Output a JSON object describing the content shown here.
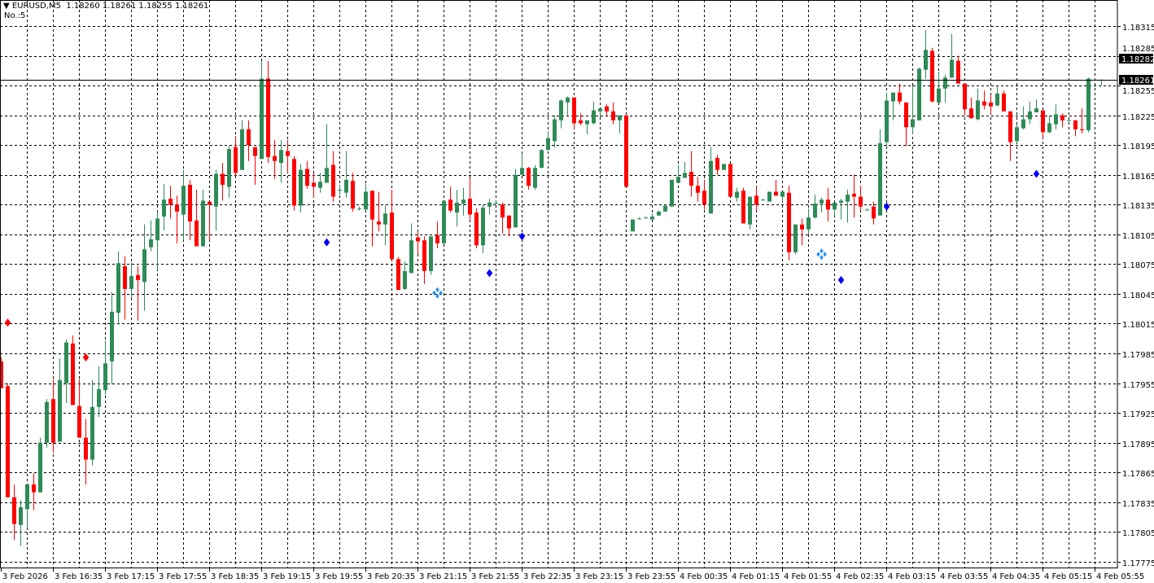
{
  "header": {
    "collapse_icon": "triangle-down-icon",
    "symbol": "EURUSD,M5",
    "ohlc": "1.18260 1.18261 1.18255 1.18261",
    "indicator_label": "No.:5"
  },
  "colors": {
    "background": "#ffffff",
    "grid": "#000000",
    "bull": "#2e8b57",
    "bear": "#ff0000",
    "signal_red": "#ff0000",
    "signal_blue": "#0000ff",
    "signal_lightblue": "#1e90ff"
  },
  "price_axis": {
    "labels": [
      "1.18315",
      "1.18285",
      "1.18255",
      "1.18225",
      "1.18195",
      "1.18165",
      "1.18135",
      "1.18105",
      "1.18075",
      "1.18045",
      "1.18015",
      "1.17985",
      "1.17955",
      "1.17925",
      "1.17895",
      "1.17865",
      "1.17835",
      "1.17805",
      "1.17775"
    ],
    "ask_label": "1.18282",
    "bid_label": "1.18261",
    "bid_price": 1.18261,
    "ask_price": 1.18282
  },
  "time_axis": {
    "labels": [
      "3 Feb 2026",
      "3 Feb 16:35",
      "3 Feb 17:15",
      "3 Feb 17:55",
      "3 Feb 18:35",
      "3 Feb 19:15",
      "3 Feb 19:55",
      "3 Feb 20:35",
      "3 Feb 21:15",
      "3 Feb 21:55",
      "3 Feb 22:35",
      "3 Feb 23:15",
      "3 Feb 23:55",
      "4 Feb 00:35",
      "4 Feb 01:15",
      "4 Feb 01:55",
      "4 Feb 02:35",
      "4 Feb 03:15",
      "4 Feb 03:55",
      "4 Feb 04:35",
      "4 Feb 05:15",
      "4 Feb 05:55"
    ]
  },
  "chart_data": {
    "type": "candlestick",
    "symbol": "EURUSD",
    "timeframe": "M5",
    "ylim": [
      1.17775,
      1.18315
    ],
    "grid": true,
    "ohlc": [
      [
        1.17977,
        1.17981,
        1.1795,
        1.1795
      ],
      [
        1.17952,
        1.17955,
        1.1784,
        1.1784
      ],
      [
        1.1784,
        1.17853,
        1.17797,
        1.17813
      ],
      [
        1.17812,
        1.17837,
        1.17791,
        1.1783
      ],
      [
        1.17828,
        1.17853,
        1.17809,
        1.17853
      ],
      [
        1.17853,
        1.17864,
        1.17827,
        1.17845
      ],
      [
        1.17845,
        1.179,
        1.17845,
        1.17895
      ],
      [
        1.17895,
        1.17939,
        1.1789,
        1.17936
      ],
      [
        1.17939,
        1.17959,
        1.17885,
        1.17895
      ],
      [
        1.17896,
        1.1798,
        1.17896,
        1.17958
      ],
      [
        1.17955,
        1.17999,
        1.17935,
        1.17996
      ],
      [
        1.17995,
        1.18003,
        1.17933,
        1.17933
      ],
      [
        1.17932,
        1.17959,
        1.179,
        1.179
      ],
      [
        1.179,
        1.17919,
        1.17853,
        1.17878
      ],
      [
        1.17878,
        1.17958,
        1.17872,
        1.17931
      ],
      [
        1.17931,
        1.17972,
        1.17921,
        1.17949
      ],
      [
        1.17948,
        1.17998,
        1.17943,
        1.17975
      ],
      [
        1.17977,
        1.18047,
        1.17954,
        1.18027
      ],
      [
        1.18026,
        1.18088,
        1.18014,
        1.18076
      ],
      [
        1.18073,
        1.18083,
        1.18019,
        1.1805
      ],
      [
        1.1805,
        1.18077,
        1.18041,
        1.18063
      ],
      [
        1.18064,
        1.18073,
        1.18018,
        1.18059
      ],
      [
        1.18057,
        1.18115,
        1.18028,
        1.1809
      ],
      [
        1.18092,
        1.18119,
        1.18088,
        1.181
      ],
      [
        1.18099,
        1.18128,
        1.18069,
        1.18121
      ],
      [
        1.18123,
        1.18156,
        1.18109,
        1.1814
      ],
      [
        1.18141,
        1.18154,
        1.18121,
        1.18135
      ],
      [
        1.18135,
        1.18144,
        1.18096,
        1.18128
      ],
      [
        1.18125,
        1.1817,
        1.18099,
        1.18154
      ],
      [
        1.18155,
        1.1816,
        1.18099,
        1.18118
      ],
      [
        1.18119,
        1.1815,
        1.18093,
        1.18093
      ],
      [
        1.18093,
        1.1815,
        1.18093,
        1.18139
      ],
      [
        1.18138,
        1.18138,
        1.18099,
        1.18135
      ],
      [
        1.18133,
        1.1817,
        1.18109,
        1.18166
      ],
      [
        1.18166,
        1.18177,
        1.18139,
        1.18155
      ],
      [
        1.18153,
        1.18194,
        1.18142,
        1.18191
      ],
      [
        1.18193,
        1.18204,
        1.18164,
        1.18167
      ],
      [
        1.1817,
        1.1822,
        1.1817,
        1.18211
      ],
      [
        1.18211,
        1.1822,
        1.18179,
        1.18195
      ],
      [
        1.18193,
        1.18193,
        1.18155,
        1.18184
      ],
      [
        1.18181,
        1.1828,
        1.18181,
        1.18262
      ],
      [
        1.18262,
        1.1828,
        1.18177,
        1.18183
      ],
      [
        1.18184,
        1.182,
        1.18161,
        1.18179
      ],
      [
        1.18177,
        1.182,
        1.18157,
        1.1819
      ],
      [
        1.18189,
        1.182,
        1.18167,
        1.18184
      ],
      [
        1.18181,
        1.18184,
        1.18129,
        1.18134
      ],
      [
        1.18134,
        1.18176,
        1.18127,
        1.1817
      ],
      [
        1.18171,
        1.18179,
        1.18151,
        1.18154
      ],
      [
        1.18157,
        1.18167,
        1.18142,
        1.18153
      ],
      [
        1.18152,
        1.18167,
        1.18147,
        1.18158
      ],
      [
        1.18157,
        1.18216,
        1.18157,
        1.18172
      ],
      [
        1.18175,
        1.18189,
        1.18138,
        1.18143
      ],
      [
        1.1815,
        1.18155,
        1.18145,
        1.1815
      ],
      [
        1.18147,
        1.18189,
        1.18142,
        1.1816
      ],
      [
        1.18159,
        1.18167,
        1.18128,
        1.18131
      ],
      [
        1.18131,
        1.18133,
        1.18129,
        1.18131
      ],
      [
        1.1813,
        1.18156,
        1.1813,
        1.18148
      ],
      [
        1.18149,
        1.18149,
        1.18093,
        1.1812
      ],
      [
        1.18118,
        1.18148,
        1.18108,
        1.18115
      ],
      [
        1.18115,
        1.18134,
        1.18094,
        1.18126
      ],
      [
        1.18127,
        1.1815,
        1.1808,
        1.1808
      ],
      [
        1.1808,
        1.18082,
        1.18049,
        1.18049
      ],
      [
        1.1805,
        1.18078,
        1.18049,
        1.18068
      ],
      [
        1.18066,
        1.18116,
        1.18066,
        1.18099
      ],
      [
        1.18102,
        1.18108,
        1.18085,
        1.18098
      ],
      [
        1.18099,
        1.18103,
        1.18055,
        1.18068
      ],
      [
        1.18068,
        1.18103,
        1.18064,
        1.18103
      ],
      [
        1.18104,
        1.18118,
        1.18091,
        1.18096
      ],
      [
        1.18096,
        1.18139,
        1.18095,
        1.18139
      ],
      [
        1.1814,
        1.18153,
        1.18127,
        1.18129
      ],
      [
        1.18127,
        1.1815,
        1.18113,
        1.18137
      ],
      [
        1.18136,
        1.18152,
        1.18124,
        1.1814
      ],
      [
        1.18141,
        1.18162,
        1.1812,
        1.18125
      ],
      [
        1.18127,
        1.18131,
        1.18091,
        1.18094
      ],
      [
        1.18094,
        1.18135,
        1.18086,
        1.18132
      ],
      [
        1.18133,
        1.18141,
        1.18125,
        1.18137
      ],
      [
        1.18137,
        1.18139,
        1.18135,
        1.18137
      ],
      [
        1.18135,
        1.18137,
        1.18106,
        1.18122
      ],
      [
        1.18124,
        1.18124,
        1.18103,
        1.18111
      ],
      [
        1.18112,
        1.18171,
        1.18112,
        1.18165
      ],
      [
        1.18165,
        1.18187,
        1.18165,
        1.18172
      ],
      [
        1.18172,
        1.18173,
        1.1815,
        1.18154
      ],
      [
        1.18152,
        1.18175,
        1.1815,
        1.18172
      ],
      [
        1.18172,
        1.18191,
        1.18172,
        1.1819
      ],
      [
        1.1819,
        1.18209,
        1.1819,
        1.18202
      ],
      [
        1.18199,
        1.18225,
        1.18193,
        1.18221
      ],
      [
        1.1822,
        1.18241,
        1.18212,
        1.1824
      ],
      [
        1.18238,
        1.18244,
        1.18225,
        1.18243
      ],
      [
        1.18243,
        1.18243,
        1.18211,
        1.18217
      ],
      [
        1.1822,
        1.18227,
        1.18215,
        1.18217
      ],
      [
        1.18216,
        1.1822,
        1.18206,
        1.1822
      ],
      [
        1.18217,
        1.18239,
        1.18216,
        1.1823
      ],
      [
        1.18229,
        1.18232,
        1.18223,
        1.18232
      ],
      [
        1.18234,
        1.18236,
        1.18225,
        1.18229
      ],
      [
        1.18229,
        1.18238,
        1.18216,
        1.1822
      ],
      [
        1.1822,
        1.18225,
        1.18207,
        1.18225
      ],
      [
        1.18225,
        1.18225,
        1.18153,
        1.18153
      ],
      [
        1.18108,
        1.1812,
        1.18108,
        1.1812
      ],
      [
        1.18121,
        1.18122,
        1.1812,
        1.18121
      ],
      [
        1.18122,
        1.18123,
        1.18121,
        1.18122
      ],
      [
        1.1812,
        1.18126,
        1.1812,
        1.18123
      ],
      [
        1.18124,
        1.18129,
        1.18124,
        1.18128
      ],
      [
        1.18128,
        1.18134,
        1.18128,
        1.18134
      ],
      [
        1.18133,
        1.1816,
        1.18133,
        1.1816
      ],
      [
        1.18157,
        1.18175,
        1.18157,
        1.18163
      ],
      [
        1.18162,
        1.18178,
        1.18162,
        1.18167
      ],
      [
        1.18168,
        1.18189,
        1.18143,
        1.18154
      ],
      [
        1.18154,
        1.18163,
        1.18138,
        1.18147
      ],
      [
        1.18149,
        1.1816,
        1.1813,
        1.18135
      ],
      [
        1.18126,
        1.18193,
        1.18126,
        1.18179
      ],
      [
        1.18182,
        1.18185,
        1.18165,
        1.1817
      ],
      [
        1.1817,
        1.18176,
        1.1817,
        1.18176
      ],
      [
        1.18176,
        1.18176,
        1.18143,
        1.18143
      ],
      [
        1.18142,
        1.18152,
        1.18138,
        1.18148
      ],
      [
        1.18149,
        1.18152,
        1.18116,
        1.18116
      ],
      [
        1.18115,
        1.18143,
        1.1811,
        1.18143
      ],
      [
        1.18144,
        1.18153,
        1.18129,
        1.18135
      ],
      [
        1.1814,
        1.18141,
        1.18139,
        1.1814
      ],
      [
        1.18138,
        1.18148,
        1.18138,
        1.18148
      ],
      [
        1.18148,
        1.1816,
        1.18144,
        1.18144
      ],
      [
        1.18143,
        1.18148,
        1.18138,
        1.18148
      ],
      [
        1.18147,
        1.18154,
        1.18079,
        1.18087
      ],
      [
        1.18087,
        1.18115,
        1.18085,
        1.18115
      ],
      [
        1.18115,
        1.18121,
        1.18094,
        1.1811
      ],
      [
        1.1811,
        1.18131,
        1.18105,
        1.18122
      ],
      [
        1.18122,
        1.18145,
        1.18121,
        1.18136
      ],
      [
        1.18136,
        1.18142,
        1.18127,
        1.1814
      ],
      [
        1.1814,
        1.18152,
        1.18118,
        1.1813
      ],
      [
        1.1813,
        1.18137,
        1.18124,
        1.18137
      ],
      [
        1.18137,
        1.18141,
        1.1812,
        1.18139
      ],
      [
        1.18138,
        1.1815,
        1.18117,
        1.18145
      ],
      [
        1.18146,
        1.18165,
        1.18122,
        1.18143
      ],
      [
        1.18143,
        1.18154,
        1.18129,
        1.18133
      ],
      [
        1.1813,
        1.18131,
        1.18129,
        1.1813
      ],
      [
        1.18133,
        1.18138,
        1.18115,
        1.18121
      ],
      [
        1.18124,
        1.18211,
        1.18124,
        1.18197
      ],
      [
        1.18198,
        1.18248,
        1.18193,
        1.1824
      ],
      [
        1.18239,
        1.18248,
        1.1822,
        1.18248
      ],
      [
        1.18248,
        1.18257,
        1.18236,
        1.18239
      ],
      [
        1.18238,
        1.18238,
        1.18194,
        1.18213
      ],
      [
        1.18213,
        1.18255,
        1.18206,
        1.18221
      ],
      [
        1.1822,
        1.18273,
        1.1822,
        1.18272
      ],
      [
        1.18271,
        1.18311,
        1.18262,
        1.18291
      ],
      [
        1.1829,
        1.18293,
        1.18238,
        1.18239
      ],
      [
        1.18238,
        1.18269,
        1.18238,
        1.18252
      ],
      [
        1.18252,
        1.18266,
        1.18238,
        1.18263
      ],
      [
        1.18263,
        1.18307,
        1.18263,
        1.18281
      ],
      [
        1.1828,
        1.18285,
        1.18257,
        1.18257
      ],
      [
        1.18257,
        1.18257,
        1.18225,
        1.18231
      ],
      [
        1.18232,
        1.18243,
        1.18222,
        1.18222
      ],
      [
        1.18221,
        1.18252,
        1.1822,
        1.1824
      ],
      [
        1.18239,
        1.1825,
        1.18231,
        1.18235
      ],
      [
        1.18238,
        1.18245,
        1.18226,
        1.18234
      ],
      [
        1.18235,
        1.18254,
        1.18234,
        1.18247
      ],
      [
        1.18247,
        1.1825,
        1.18229,
        1.18229
      ],
      [
        1.18229,
        1.18229,
        1.18179,
        1.18198
      ],
      [
        1.18199,
        1.18216,
        1.18197,
        1.18213
      ],
      [
        1.18212,
        1.18234,
        1.18211,
        1.18221
      ],
      [
        1.18221,
        1.18239,
        1.18216,
        1.18229
      ],
      [
        1.18228,
        1.18241,
        1.18228,
        1.18232
      ],
      [
        1.1823,
        1.1823,
        1.18202,
        1.18208
      ],
      [
        1.18208,
        1.18225,
        1.18207,
        1.18217
      ],
      [
        1.18216,
        1.18236,
        1.18211,
        1.18226
      ],
      [
        1.18225,
        1.18227,
        1.18213,
        1.1822
      ],
      [
        1.1822,
        1.18221,
        1.18219,
        1.1822
      ],
      [
        1.1822,
        1.1822,
        1.18204,
        1.18211
      ],
      [
        1.18211,
        1.18232,
        1.18207,
        1.1821
      ],
      [
        1.1821,
        1.18263,
        1.18208,
        1.18262
      ],
      [
        1.18261,
        1.18262,
        1.1826,
        1.18261
      ],
      [
        1.1826,
        1.18261,
        1.18255,
        1.18261
      ]
    ],
    "signals": [
      {
        "bar": 1,
        "price": 1.18016,
        "color": "red",
        "shape": "diamond"
      },
      {
        "bar": 13,
        "price": 1.17981,
        "color": "red",
        "shape": "diamond"
      },
      {
        "bar": 50,
        "price": 1.18097,
        "color": "blue",
        "shape": "diamond"
      },
      {
        "bar": 67,
        "price": 1.18046,
        "color": "lightblue",
        "shape": "diamond-cluster"
      },
      {
        "bar": 75,
        "price": 1.18066,
        "color": "blue",
        "shape": "diamond"
      },
      {
        "bar": 80,
        "price": 1.18103,
        "color": "blue",
        "shape": "diamond"
      },
      {
        "bar": 126,
        "price": 1.18085,
        "color": "lightblue",
        "shape": "diamond-cluster"
      },
      {
        "bar": 129,
        "price": 1.18059,
        "color": "blue",
        "shape": "diamond"
      },
      {
        "bar": 136,
        "price": 1.18133,
        "color": "blue",
        "shape": "diamond"
      },
      {
        "bar": 159,
        "price": 1.18166,
        "color": "blue",
        "shape": "diamond"
      }
    ]
  }
}
